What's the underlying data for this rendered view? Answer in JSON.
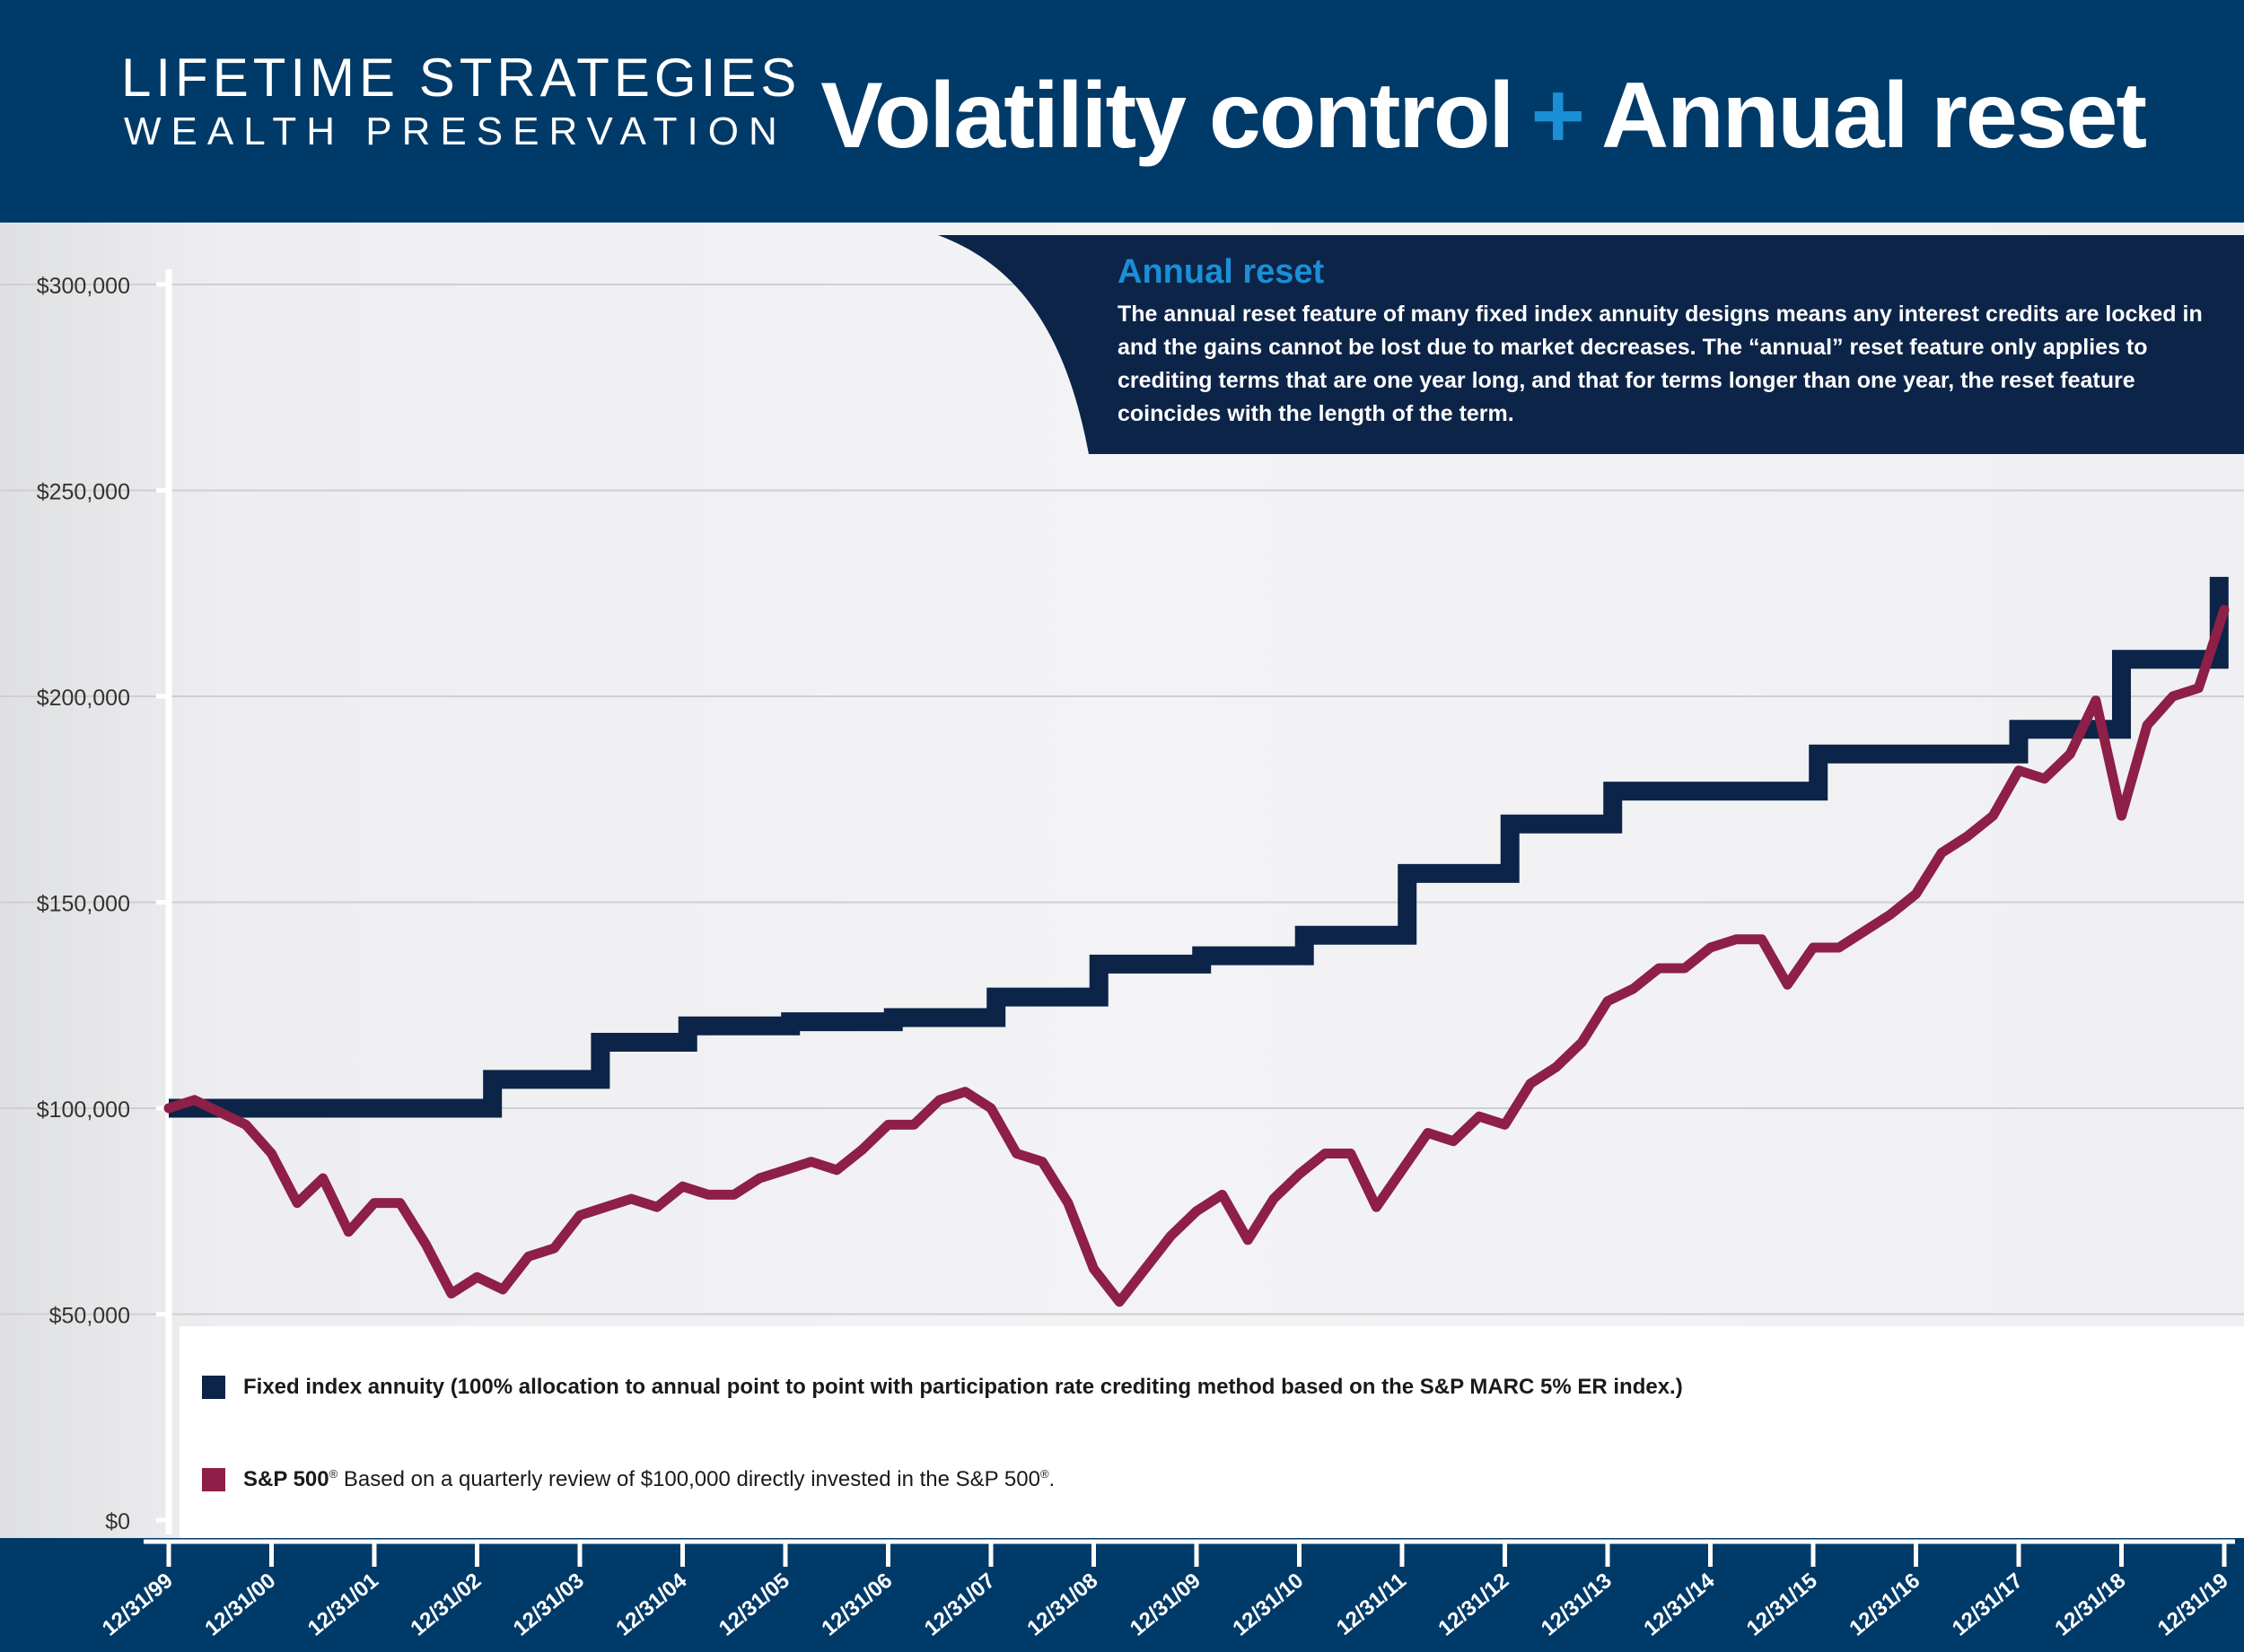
{
  "header": {
    "brand_line1": "LIFETIME STRATEGIES",
    "brand_line2": "WEALTH PRESERVATION",
    "headline_part1": "Volatility control",
    "headline_plus": "+",
    "headline_part2": "Annual reset"
  },
  "callout": {
    "title": "Annual reset",
    "body": "The annual reset feature of many fixed index annuity designs means any interest credits are locked in and the gains cannot be lost due to market decreases. The “annual” reset feature only applies to crediting terms that are one year long, and that for terms longer than one year, the reset feature coincides with the length of the term."
  },
  "legend": {
    "fia_label": "Fixed index annuity (100% allocation to annual point to point with participation rate crediting method based on the S&P MARC 5% ER index.)",
    "sp_label_bold": "S&P 500",
    "sp_label_sup": "®",
    "sp_label_rest": " Based on a quarterly review of $100,000 directly invested in the S&P 500",
    "sp_label_end_sup": "®",
    "sp_label_end": "."
  },
  "colors": {
    "header_bg": "#003a68",
    "fia": "#0c2448",
    "sp500": "#8e1f47",
    "accent": "#1a8fd6"
  },
  "chart_data": {
    "type": "line",
    "title": "Volatility control + Annual reset",
    "xlabel": "",
    "ylabel": "",
    "x_range": [
      0,
      20
    ],
    "ylim": [
      0,
      300000
    ],
    "grid": true,
    "y_ticks": [
      0,
      50000,
      100000,
      150000,
      200000,
      250000,
      300000
    ],
    "y_tick_labels": [
      "$0",
      "$50,000",
      "$100,000",
      "$150,000",
      "$200,000",
      "$250,000",
      "$300,000"
    ],
    "x_ticks": [
      0,
      1,
      2,
      3,
      4,
      5,
      6,
      7,
      8,
      9,
      10,
      11,
      12,
      13,
      14,
      15,
      16,
      17,
      18,
      19,
      20
    ],
    "x_tick_labels": [
      "12/31/99",
      "12/31/00",
      "12/31/01",
      "12/31/02",
      "12/31/03",
      "12/31/04",
      "12/31/05",
      "12/31/06",
      "12/31/07",
      "12/31/08",
      "12/31/09",
      "12/31/10",
      "12/31/11",
      "12/31/12",
      "12/31/13",
      "12/31/14",
      "12/31/15",
      "12/31/16",
      "12/31/17",
      "12/31/18",
      "12/31/19"
    ],
    "series": [
      {
        "name": "Fixed index annuity",
        "style": "step",
        "x": [
          0,
          3.15,
          4.2,
          5.05,
          6.05,
          7.05,
          8.05,
          9.05,
          10.05,
          11.05,
          12.05,
          13.05,
          14.05,
          15.05,
          16.05,
          17.05,
          18.0,
          19.0,
          19.95,
          19.95
        ],
        "values": [
          100000,
          107000,
          116000,
          120000,
          121000,
          122000,
          127000,
          135000,
          137000,
          142000,
          157000,
          169000,
          177000,
          177000,
          186000,
          186000,
          192000,
          209000,
          209000,
          229000
        ]
      },
      {
        "name": "S&P 500",
        "style": "line",
        "x": [
          0,
          0.25,
          0.5,
          0.75,
          1,
          1.25,
          1.5,
          1.75,
          2,
          2.25,
          2.5,
          2.75,
          3,
          3.25,
          3.5,
          3.75,
          4,
          4.25,
          4.5,
          4.75,
          5,
          5.25,
          5.5,
          5.75,
          6,
          6.25,
          6.5,
          6.75,
          7,
          7.25,
          7.5,
          7.75,
          8,
          8.25,
          8.5,
          8.75,
          9,
          9.25,
          9.5,
          9.75,
          10,
          10.25,
          10.5,
          10.75,
          11,
          11.25,
          11.5,
          11.75,
          12,
          12.25,
          12.5,
          12.75,
          13,
          13.25,
          13.5,
          13.75,
          14,
          14.25,
          14.5,
          14.75,
          15,
          15.25,
          15.5,
          15.75,
          16,
          16.25,
          16.5,
          16.75,
          17,
          17.25,
          17.5,
          17.75,
          18,
          18.25,
          18.5,
          18.75,
          19,
          19.25,
          19.5,
          19.75,
          20
        ],
        "values": [
          100000,
          102000,
          99000,
          96000,
          89000,
          77000,
          83000,
          70000,
          77000,
          77000,
          67000,
          55000,
          59000,
          56000,
          64000,
          66000,
          74000,
          76000,
          78000,
          76000,
          81000,
          79000,
          79000,
          83000,
          85000,
          87000,
          85000,
          90000,
          96000,
          96000,
          102000,
          104000,
          100000,
          89000,
          87000,
          77000,
          61000,
          53000,
          61000,
          69000,
          75000,
          79000,
          68000,
          78000,
          84000,
          89000,
          89000,
          76000,
          85000,
          94000,
          92000,
          98000,
          96000,
          106000,
          110000,
          116000,
          126000,
          129000,
          134000,
          134000,
          139000,
          141000,
          141000,
          130000,
          139000,
          139000,
          143000,
          147000,
          152000,
          162000,
          166000,
          171000,
          182000,
          180000,
          186000,
          199000,
          171000,
          193000,
          200000,
          202000,
          221000
        ]
      }
    ]
  }
}
